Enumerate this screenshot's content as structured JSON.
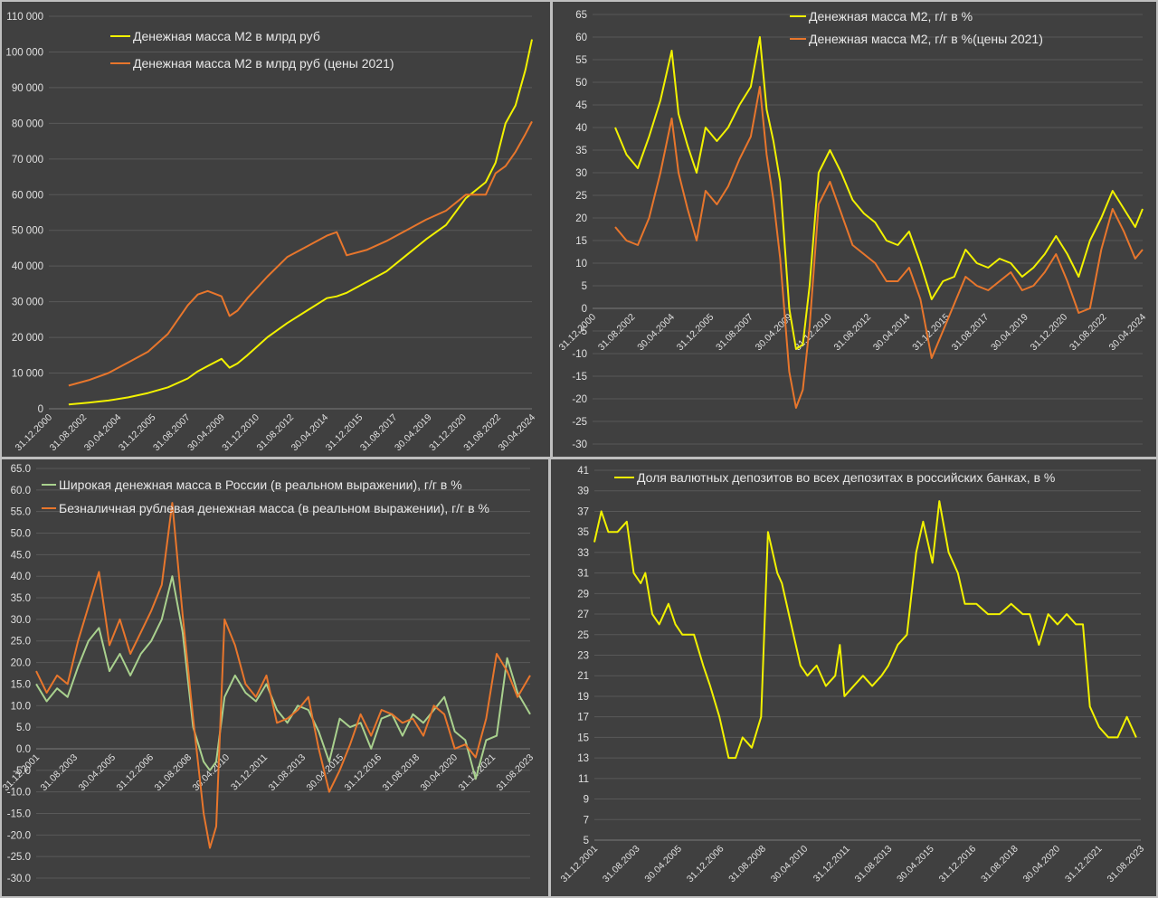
{
  "colors": {
    "yellow": "#f2f200",
    "orange": "#e8762c",
    "green": "#a9d18e",
    "background": "#404040",
    "grid": "#595959",
    "text": "#e0e0e0"
  },
  "chart_data": [
    {
      "type": "line",
      "yticks": [
        "0",
        "10 000",
        "20 000",
        "30 000",
        "40 000",
        "50 000",
        "60 000",
        "70 000",
        "80 000",
        "90 000",
        "100 000",
        "110 000"
      ],
      "ylim": [
        0,
        110000
      ],
      "xticks": [
        "31.12.2000",
        "31.08.2002",
        "30.04.2004",
        "31.12.2005",
        "31.08.2007",
        "30.04.2009",
        "31.12.2010",
        "31.08.2012",
        "30.04.2014",
        "31.12.2015",
        "31.08.2017",
        "30.04.2019",
        "31.12.2020",
        "31.08.2022",
        "30.04.2024"
      ],
      "xlim": [
        2000.0,
        2024.33
      ],
      "legend_position": "top-left",
      "grid": "horizontal",
      "series": [
        {
          "name": "Денежная масса М2 в млрд руб",
          "color": "yellow",
          "x": [
            2001.0,
            2002.0,
            2003.0,
            2004.0,
            2005.0,
            2006.0,
            2007.0,
            2007.5,
            2008.0,
            2008.7,
            2009.1,
            2009.5,
            2010.0,
            2011.0,
            2012.0,
            2013.0,
            2014.0,
            2014.5,
            2015.0,
            2016.0,
            2017.0,
            2018.0,
            2019.0,
            2020.0,
            2021.0,
            2022.0,
            2022.5,
            2023.0,
            2023.5,
            2024.0,
            2024.33
          ],
          "y": [
            1200,
            1700,
            2300,
            3200,
            4400,
            6000,
            8500,
            10500,
            12000,
            14000,
            11500,
            12700,
            15000,
            20000,
            24000,
            27500,
            31000,
            31500,
            32500,
            35500,
            38500,
            43000,
            47500,
            51500,
            59000,
            63500,
            69000,
            80000,
            85000,
            95000,
            103500
          ]
        },
        {
          "name": "Денежная масса М2 в млрд руб (цены 2021)",
          "color": "orange",
          "x": [
            2001.0,
            2002.0,
            2003.0,
            2004.0,
            2005.0,
            2006.0,
            2007.0,
            2007.5,
            2008.0,
            2008.7,
            2009.1,
            2009.5,
            2010.0,
            2011.0,
            2012.0,
            2013.0,
            2014.0,
            2014.5,
            2015.0,
            2016.0,
            2017.0,
            2018.0,
            2019.0,
            2020.0,
            2021.0,
            2022.0,
            2022.5,
            2023.0,
            2023.5,
            2024.0,
            2024.33
          ],
          "y": [
            6500,
            8000,
            10000,
            13000,
            16000,
            21000,
            29000,
            32000,
            33000,
            31500,
            26000,
            27500,
            31000,
            37000,
            42500,
            45500,
            48500,
            49500,
            43000,
            44500,
            47000,
            50000,
            53000,
            55500,
            60000,
            60000,
            66000,
            68000,
            72000,
            77000,
            80500
          ]
        }
      ]
    },
    {
      "type": "line",
      "yticks": [
        "-30",
        "-25",
        "-20",
        "-15",
        "-10",
        "-5",
        "0",
        "5",
        "10",
        "15",
        "20",
        "25",
        "30",
        "35",
        "40",
        "45",
        "50",
        "55",
        "60",
        "65"
      ],
      "ylim": [
        -30,
        65
      ],
      "xticks": [
        "31.12.2000",
        "31.08.2002",
        "30.04.2004",
        "31.12.2005",
        "31.08.2007",
        "30.04.2009",
        "31.12.2010",
        "31.08.2012",
        "30.04.2014",
        "31.12.2015",
        "31.08.2017",
        "30.04.2019",
        "31.12.2020",
        "31.08.2022",
        "30.04.2024"
      ],
      "xlim": [
        2000.0,
        2024.33
      ],
      "legend_position": "top-center",
      "grid": "horizontal",
      "series": [
        {
          "name": "Денежная масса М2, г/г в %",
          "color": "yellow",
          "x": [
            2001.0,
            2001.5,
            2002.0,
            2002.5,
            2003.0,
            2003.5,
            2003.8,
            2004.2,
            2004.6,
            2005.0,
            2005.5,
            2006.0,
            2006.5,
            2007.0,
            2007.4,
            2007.7,
            2008.0,
            2008.3,
            2008.7,
            2009.0,
            2009.3,
            2009.6,
            2010.0,
            2010.5,
            2011.0,
            2011.5,
            2012.0,
            2012.5,
            2013.0,
            2013.5,
            2014.0,
            2014.5,
            2015.0,
            2015.5,
            2016.0,
            2016.5,
            2017.0,
            2017.5,
            2018.0,
            2018.5,
            2019.0,
            2019.5,
            2020.0,
            2020.5,
            2021.0,
            2021.5,
            2022.0,
            2022.5,
            2023.0,
            2023.5,
            2024.0,
            2024.33
          ],
          "y": [
            40,
            34,
            31,
            38,
            46,
            57,
            43,
            36,
            30,
            40,
            37,
            40,
            45,
            49,
            60,
            44,
            37,
            28,
            0,
            -9,
            -8,
            5,
            30,
            35,
            30,
            24,
            21,
            19,
            15,
            14,
            17,
            10,
            2,
            6,
            7,
            13,
            10,
            9,
            11,
            10,
            7,
            9,
            12,
            16,
            12,
            7,
            15,
            20,
            26,
            22,
            18,
            22
          ]
        },
        {
          "name": "Денежная масса М2, г/г в %(цены 2021)",
          "color": "orange",
          "x": [
            2001.0,
            2001.5,
            2002.0,
            2002.5,
            2003.0,
            2003.5,
            2003.8,
            2004.2,
            2004.6,
            2005.0,
            2005.5,
            2006.0,
            2006.5,
            2007.0,
            2007.4,
            2007.7,
            2008.0,
            2008.3,
            2008.7,
            2009.0,
            2009.3,
            2009.6,
            2010.0,
            2010.5,
            2011.0,
            2011.5,
            2012.0,
            2012.5,
            2013.0,
            2013.5,
            2014.0,
            2014.5,
            2015.0,
            2015.5,
            2016.0,
            2016.5,
            2017.0,
            2017.5,
            2018.0,
            2018.5,
            2019.0,
            2019.5,
            2020.0,
            2020.5,
            2021.0,
            2021.5,
            2022.0,
            2022.5,
            2023.0,
            2023.5,
            2024.0,
            2024.33
          ],
          "y": [
            18,
            15,
            14,
            20,
            30,
            42,
            30,
            22,
            15,
            26,
            23,
            27,
            33,
            38,
            49,
            34,
            24,
            11,
            -14,
            -22,
            -18,
            -4,
            23,
            28,
            21,
            14,
            12,
            10,
            6,
            6,
            9,
            2,
            -11,
            -5,
            1,
            7,
            5,
            4,
            6,
            8,
            4,
            5,
            8,
            12,
            6,
            -1,
            0,
            13,
            22,
            17,
            11,
            13
          ]
        }
      ]
    },
    {
      "type": "line",
      "yticks": [
        "-30.0",
        "-25.0",
        "-20.0",
        "-15.0",
        "-10.0",
        "-5.0",
        "0.0",
        "5.0",
        "10.0",
        "15.0",
        "20.0",
        "25.0",
        "30.0",
        "35.0",
        "40.0",
        "45.0",
        "50.0",
        "55.0",
        "60.0",
        "65.0"
      ],
      "ylim": [
        -30,
        65
      ],
      "xticks": [
        "31.12.2001",
        "31.08.2003",
        "30.04.2005",
        "31.12.2006",
        "31.08.2008",
        "30.04.2010",
        "31.12.2011",
        "31.08.2013",
        "30.04.2015",
        "31.12.2016",
        "31.08.2018",
        "30.04.2020",
        "31.12.2021",
        "31.08.2023"
      ],
      "xlim": [
        2001.0,
        2024.6
      ],
      "legend_position": "top-left",
      "grid": "horizontal",
      "series": [
        {
          "name": "Широкая денежная масса в России (в реальном выражении), г/г в %",
          "color": "green",
          "x": [
            2001.0,
            2001.5,
            2002.0,
            2002.5,
            2003.0,
            2003.5,
            2004.0,
            2004.5,
            2005.0,
            2005.5,
            2006.0,
            2006.5,
            2007.0,
            2007.5,
            2008.0,
            2008.5,
            2009.0,
            2009.3,
            2009.6,
            2010.0,
            2010.5,
            2011.0,
            2011.5,
            2012.0,
            2012.5,
            2013.0,
            2013.5,
            2014.0,
            2014.5,
            2015.0,
            2015.5,
            2016.0,
            2016.5,
            2017.0,
            2017.5,
            2018.0,
            2018.5,
            2019.0,
            2019.5,
            2020.0,
            2020.5,
            2021.0,
            2021.5,
            2022.0,
            2022.5,
            2023.0,
            2023.5,
            2024.0,
            2024.6
          ],
          "y": [
            15,
            11,
            14,
            12,
            19,
            25,
            28,
            18,
            22,
            17,
            22,
            25,
            30,
            40,
            27,
            5,
            -3,
            -5,
            -3,
            12,
            17,
            13,
            11,
            15,
            9,
            6,
            10,
            9,
            4,
            -3,
            7,
            5,
            6,
            0,
            7,
            8,
            3,
            8,
            6,
            9,
            12,
            4,
            2,
            -7,
            2,
            3,
            21,
            13,
            8
          ]
        },
        {
          "name": "Безналичная рублевая денежная масса (в реальном выражении), г/г в %",
          "color": "orange",
          "x": [
            2001.0,
            2001.5,
            2002.0,
            2002.5,
            2003.0,
            2003.5,
            2004.0,
            2004.5,
            2005.0,
            2005.5,
            2006.0,
            2006.5,
            2007.0,
            2007.5,
            2008.0,
            2008.5,
            2009.0,
            2009.3,
            2009.6,
            2010.0,
            2010.5,
            2011.0,
            2011.5,
            2012.0,
            2012.5,
            2013.0,
            2013.5,
            2014.0,
            2014.5,
            2015.0,
            2015.5,
            2016.0,
            2016.5,
            2017.0,
            2017.5,
            2018.0,
            2018.5,
            2019.0,
            2019.5,
            2020.0,
            2020.5,
            2021.0,
            2021.5,
            2022.0,
            2022.5,
            2023.0,
            2023.5,
            2024.0,
            2024.6
          ],
          "y": [
            18,
            13,
            17,
            15,
            25,
            33,
            41,
            24,
            30,
            22,
            27,
            32,
            38,
            57,
            31,
            7,
            -15,
            -23,
            -18,
            30,
            24,
            15,
            12,
            17,
            6,
            7,
            9,
            12,
            0,
            -10,
            -5,
            1,
            8,
            3,
            9,
            8,
            6,
            7,
            3,
            10,
            8,
            0,
            1,
            -2,
            7,
            22,
            18,
            12,
            17
          ]
        }
      ]
    },
    {
      "type": "line",
      "yticks": [
        "5",
        "7",
        "9",
        "11",
        "13",
        "15",
        "17",
        "19",
        "21",
        "23",
        "25",
        "27",
        "29",
        "31",
        "33",
        "35",
        "37",
        "39",
        "41"
      ],
      "ylim": [
        5,
        41
      ],
      "xticks": [
        "31.12.2001",
        "31.08.2003",
        "30.04.2005",
        "31.12.2006",
        "31.08.2008",
        "30.04.2010",
        "31.12.2011",
        "31.08.2013",
        "30.04.2015",
        "31.12.2016",
        "31.08.2018",
        "30.04.2020",
        "31.12.2021",
        "31.08.2023"
      ],
      "xlim": [
        2001.0,
        2024.6
      ],
      "legend_position": "top-left",
      "grid": "horizontal",
      "series": [
        {
          "name": "Доля валютных депозитов во всех депозитах в российских банках,  в %",
          "color": "yellow",
          "x": [
            2001.0,
            2001.3,
            2001.6,
            2002.0,
            2002.4,
            2002.7,
            2003.0,
            2003.2,
            2003.5,
            2003.8,
            2004.2,
            2004.5,
            2004.8,
            2005.3,
            2005.7,
            2006.0,
            2006.4,
            2006.8,
            2007.1,
            2007.4,
            2007.8,
            2008.2,
            2008.5,
            2008.9,
            2009.1,
            2009.5,
            2009.9,
            2010.2,
            2010.6,
            2011.0,
            2011.4,
            2011.6,
            2011.8,
            2012.2,
            2012.6,
            2013.0,
            2013.4,
            2013.7,
            2014.1,
            2014.5,
            2014.9,
            2015.2,
            2015.6,
            2015.9,
            2016.3,
            2016.7,
            2017.0,
            2017.5,
            2018.0,
            2018.5,
            2019.0,
            2019.5,
            2019.8,
            2020.2,
            2020.6,
            2021.0,
            2021.4,
            2021.8,
            2022.1,
            2022.4,
            2022.8,
            2023.2,
            2023.6,
            2024.0,
            2024.4
          ],
          "y": [
            34,
            37,
            35,
            35,
            36,
            31,
            30,
            31,
            27,
            26,
            28,
            26,
            25,
            25,
            22,
            20,
            17,
            13,
            13,
            15,
            14,
            17,
            35,
            31,
            30,
            26,
            22,
            21,
            22,
            20,
            21,
            24,
            19,
            20,
            21,
            20,
            21,
            22,
            24,
            25,
            33,
            36,
            32,
            38,
            33,
            31,
            28,
            28,
            27,
            27,
            28,
            27,
            27,
            24,
            27,
            26,
            27,
            26,
            26,
            18,
            16,
            15,
            15,
            17,
            15
          ]
        }
      ]
    }
  ]
}
